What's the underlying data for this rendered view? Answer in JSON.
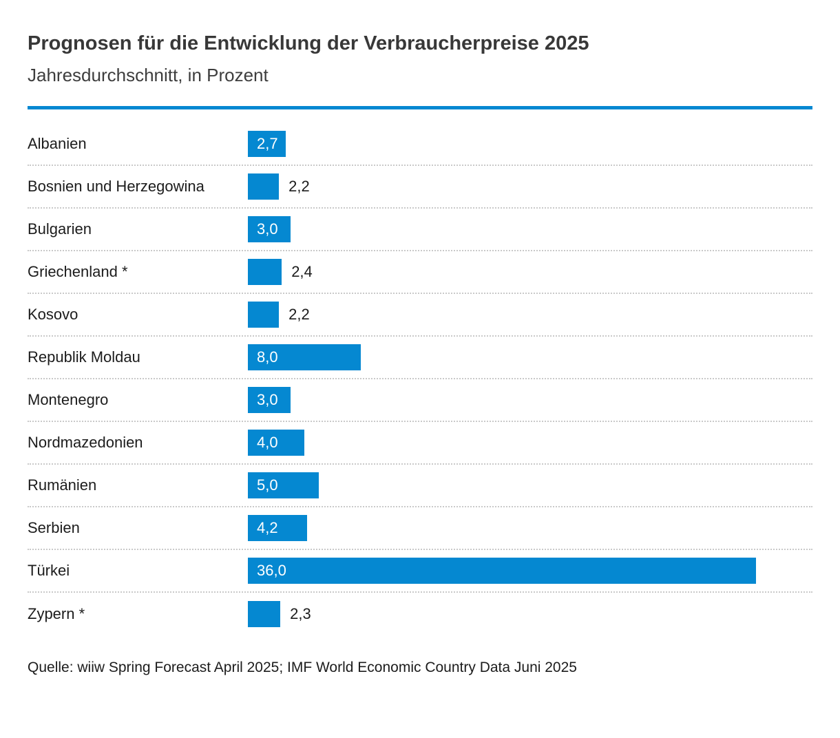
{
  "header": {
    "title": "Prognosen für die Entwicklung der Verbraucherpreise 2025",
    "subtitle": "Jahresdurchschnitt, in Prozent"
  },
  "footer": {
    "source": "Quelle: wiiw Spring Forecast April 2025; IMF World Economic Country Data Juni 2025"
  },
  "colors": {
    "bar": "#0588d1",
    "rule": "#0588d1",
    "title_text": "#383838",
    "label_text": "#1c1c1c",
    "value_inside_text": "#ffffff",
    "separator": "#c9c9c9",
    "background": "#ffffff"
  },
  "chart_data": {
    "type": "bar",
    "orientation": "horizontal",
    "title": "Prognosen für die Entwicklung der Verbraucherpreise 2025",
    "subtitle": "Jahresdurchschnitt, in Prozent",
    "unit": "Prozent, Jahresdurchschnitt",
    "xlim": [
      0,
      36
    ],
    "grid": false,
    "legend": false,
    "categories": [
      "Albanien",
      "Bosnien und Herzegowina",
      "Bulgarien",
      "Griechenland *",
      "Kosovo",
      "Republik Moldau",
      "Montenegro",
      "Nordmazedonien",
      "Rumänien",
      "Serbien",
      "Türkei",
      "Zypern *"
    ],
    "values": [
      2.7,
      2.2,
      3.0,
      2.4,
      2.2,
      8.0,
      3.0,
      4.0,
      5.0,
      4.2,
      36.0,
      2.3
    ],
    "value_labels": [
      "2,7",
      "2,2",
      "3,0",
      "2,4",
      "2,2",
      "8,0",
      "3,0",
      "4,0",
      "5,0",
      "4,2",
      "36,0",
      "2,3"
    ],
    "label_positions": [
      "inside",
      "outside",
      "inside",
      "outside",
      "outside",
      "inside",
      "inside",
      "inside",
      "inside",
      "inside",
      "inside",
      "outside"
    ]
  }
}
